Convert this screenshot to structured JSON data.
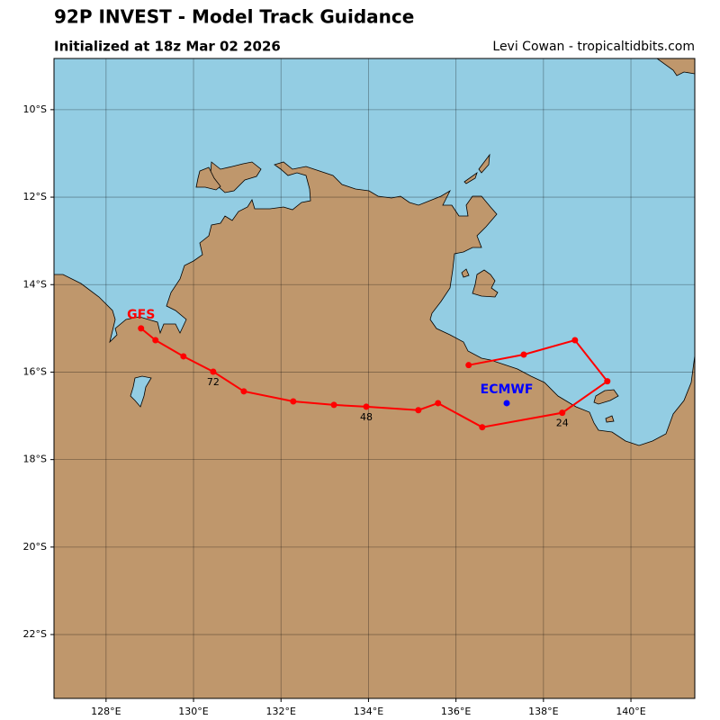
{
  "chart_data": {
    "type": "map",
    "title": "92P INVEST - Model Track Guidance",
    "subtitle": "Initialized at 18z Mar 02 2026",
    "credit": "Levi Cowan - tropicaltidbits.com",
    "xlim": [
      126.81,
      141.46
    ],
    "ylim": [
      -23.46,
      -8.83
    ],
    "xticks": [
      {
        "value": 128,
        "label": "128°E"
      },
      {
        "value": 130,
        "label": "130°E"
      },
      {
        "value": 132,
        "label": "132°E"
      },
      {
        "value": 134,
        "label": "134°E"
      },
      {
        "value": 136,
        "label": "136°E"
      },
      {
        "value": 138,
        "label": "138°E"
      },
      {
        "value": 140,
        "label": "140°E"
      }
    ],
    "yticks": [
      {
        "value": -10,
        "label": "10°S"
      },
      {
        "value": -12,
        "label": "12°S"
      },
      {
        "value": -14,
        "label": "14°S"
      },
      {
        "value": -16,
        "label": "16°S"
      },
      {
        "value": -18,
        "label": "18°S"
      },
      {
        "value": -20,
        "label": "20°S"
      },
      {
        "value": -22,
        "label": "22°S"
      }
    ],
    "grid": true,
    "series": [
      {
        "name": "GFS",
        "color": "#ff0000",
        "x": [
          136.29,
          137.55,
          138.72,
          139.46,
          138.43,
          136.6,
          135.59,
          135.14,
          133.95,
          133.21,
          132.28,
          131.15,
          130.45,
          129.77,
          129.13,
          128.8
        ],
        "values": [
          -15.84,
          -15.6,
          -15.27,
          -16.21,
          -16.93,
          -17.26,
          -16.71,
          -16.87,
          -16.79,
          -16.75,
          -16.67,
          -16.44,
          -15.99,
          -15.64,
          -15.27,
          -15.0
        ],
        "labels": [
          null,
          null,
          null,
          null,
          "24",
          null,
          null,
          null,
          "48",
          null,
          null,
          null,
          "72",
          null,
          null,
          null
        ]
      },
      {
        "name": "ECMWF",
        "color": "#0000ff",
        "x": [
          137.16
        ],
        "values": [
          -16.71
        ]
      }
    ]
  }
}
